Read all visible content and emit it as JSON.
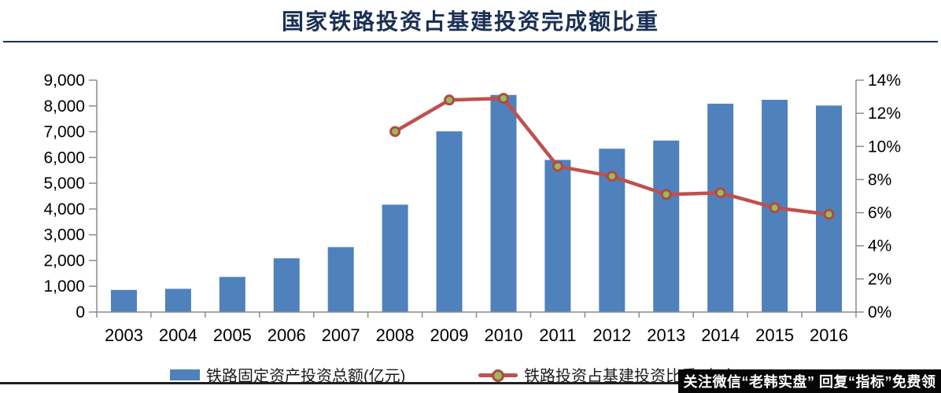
{
  "title": "国家铁路投资占基建投资完成额比重",
  "colors": {
    "title": "#1A2F55",
    "bar": "#4F81BD",
    "line": "#C0504D",
    "marker_fill": "#9BBB59",
    "marker_ring": "#AE4B47",
    "axis": "#8C8C8C",
    "tick_label": "#000000",
    "watermark_bg": "#060606",
    "watermark_fg": "#FFFFFF"
  },
  "chart_data": {
    "type": "bar",
    "subtype": "bar+line combo, dual axis",
    "title": "国家铁路投资占基建投资完成额比重",
    "categories": [
      "2003",
      "2004",
      "2005",
      "2006",
      "2007",
      "2008",
      "2009",
      "2010",
      "2011",
      "2012",
      "2013",
      "2014",
      "2015",
      "2016"
    ],
    "series": [
      {
        "name": "铁路固定资产投资总额(亿元)",
        "type": "bar",
        "axis": "left",
        "color": "#4F81BD",
        "values": [
          858,
          902,
          1364,
          2088,
          2521,
          4168,
          7013,
          8427,
          5906,
          6340,
          6657,
          8088,
          8238,
          8015
        ]
      },
      {
        "name": "铁路投资占基建投资比重（%）",
        "type": "line",
        "axis": "right",
        "color": "#C0504D",
        "marker_fill": "#9BBB59",
        "values": [
          null,
          null,
          null,
          null,
          null,
          10.9,
          12.8,
          12.9,
          8.8,
          8.2,
          7.1,
          7.2,
          6.3,
          5.9
        ]
      }
    ],
    "left_axis": {
      "min": 0,
      "max": 9000,
      "step": 1000,
      "tick_labels": [
        "0",
        "1,000",
        "2,000",
        "3,000",
        "4,000",
        "5,000",
        "6,000",
        "7,000",
        "8,000",
        "9,000"
      ],
      "tick_values": [
        0,
        1000,
        2000,
        3000,
        4000,
        5000,
        6000,
        7000,
        8000,
        9000
      ]
    },
    "right_axis": {
      "min": 0,
      "max": 14,
      "step": 2,
      "tick_labels": [
        "0%",
        "2%",
        "4%",
        "6%",
        "8%",
        "10%",
        "12%",
        "14%"
      ],
      "tick_values": [
        0,
        2,
        4,
        6,
        8,
        10,
        12,
        14
      ]
    },
    "grid": false,
    "legend_position": "bottom"
  },
  "legend": {
    "items": [
      {
        "label": "铁路固定资产投资总额(亿元)",
        "swatch": "bar-swatch"
      },
      {
        "label": "铁路投资占基建投资比重（%）",
        "swatch": "line-marker-swatch"
      }
    ]
  },
  "watermark": {
    "text": "关注微信“老韩实盘” 回复“指标”免费领"
  }
}
